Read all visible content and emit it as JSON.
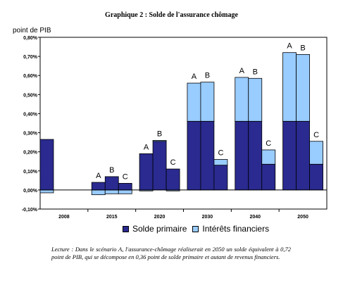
{
  "chart_data": {
    "type": "bar",
    "title": "Graphique 2 : Solde de l'assurance chômage",
    "ylabel": "point de PIB",
    "ylim": [
      -0.1,
      0.8
    ],
    "yticks": [
      "-0,10%",
      "0,00%",
      "0,10%",
      "0,20%",
      "0,30%",
      "0,40%",
      "0,50%",
      "0,60%",
      "0,70%",
      "0,80%"
    ],
    "categories": [
      "2008",
      "2015",
      "2020",
      "2030",
      "2040",
      "2050"
    ],
    "scenario_labels": [
      "A",
      "B",
      "C"
    ],
    "series": [
      {
        "name": "Solde primaire",
        "color": "#2a2a90"
      },
      {
        "name": "Intérêts financiers",
        "color": "#99ccff"
      }
    ],
    "groups": [
      {
        "category": "2008",
        "bars": [
          {
            "label": "",
            "primaire": 0.265,
            "interets": -0.015
          }
        ]
      },
      {
        "category": "2015",
        "bars": [
          {
            "label": "A",
            "primaire": 0.04,
            "interets": -0.025
          },
          {
            "label": "B",
            "primaire": 0.07,
            "interets": -0.02
          },
          {
            "label": "C",
            "primaire": 0.035,
            "interets": -0.02
          }
        ]
      },
      {
        "category": "2020",
        "bars": [
          {
            "label": "A",
            "primaire": 0.19,
            "interets": -0.005
          },
          {
            "label": "B",
            "primaire": 0.255,
            "interets": 0.005
          },
          {
            "label": "C",
            "primaire": 0.11,
            "interets": -0.005
          }
        ]
      },
      {
        "category": "2030",
        "bars": [
          {
            "label": "A",
            "primaire": 0.36,
            "interets": 0.2
          },
          {
            "label": "B",
            "primaire": 0.36,
            "interets": 0.205
          },
          {
            "label": "C",
            "primaire": 0.13,
            "interets": 0.03
          }
        ]
      },
      {
        "category": "2040",
        "bars": [
          {
            "label": "A",
            "primaire": 0.36,
            "interets": 0.23
          },
          {
            "label": "B",
            "primaire": 0.36,
            "interets": 0.225
          },
          {
            "label": "C",
            "primaire": 0.135,
            "interets": 0.075
          }
        ]
      },
      {
        "category": "2050",
        "bars": [
          {
            "label": "A",
            "primaire": 0.36,
            "interets": 0.36
          },
          {
            "label": "B",
            "primaire": 0.36,
            "interets": 0.35
          },
          {
            "label": "C",
            "primaire": 0.135,
            "interets": 0.12
          }
        ]
      }
    ],
    "legend_position": "bottom",
    "grid": false
  },
  "legend": {
    "primaire": "Solde primaire",
    "interets": "Intérêts financiers"
  },
  "note": "Lecture : Dans le scénario A, l'assurance-chômage réaliserait en 2050 un solde équivalent à 0,72 point de PIB, qui se décompose en 0,36 point de solde primaire et autant de revenus financiers."
}
